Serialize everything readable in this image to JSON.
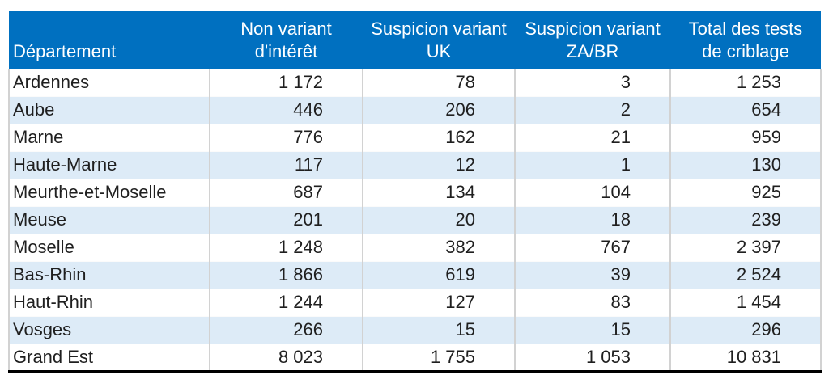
{
  "colors": {
    "header_bg": "#0070C0",
    "header_text": "#FFFFFF",
    "row_alt_bg": "#DDEBF7",
    "row_bg": "#FFFFFF",
    "cell_text": "#1F1F1F",
    "grid_border": "#D2D2D2",
    "table_bottom_border": "#000000"
  },
  "table": {
    "headers": [
      {
        "label": "Département"
      },
      {
        "label": "Non variant\nd'intérêt"
      },
      {
        "label": "Suspicion variant\nUK"
      },
      {
        "label": "Suspicion variant\nZA/BR"
      },
      {
        "label": "Total des tests\nde criblage"
      }
    ],
    "rows": [
      {
        "name": "Ardennes",
        "values": [
          "1 172",
          "78",
          "3",
          "1 253"
        ]
      },
      {
        "name": "Aube",
        "values": [
          "446",
          "206",
          "2",
          "654"
        ]
      },
      {
        "name": "Marne",
        "values": [
          "776",
          "162",
          "21",
          "959"
        ]
      },
      {
        "name": "Haute-Marne",
        "values": [
          "117",
          "12",
          "1",
          "130"
        ]
      },
      {
        "name": "Meurthe-et-Moselle",
        "values": [
          "687",
          "134",
          "104",
          "925"
        ]
      },
      {
        "name": "Meuse",
        "values": [
          "201",
          "20",
          "18",
          "239"
        ]
      },
      {
        "name": "Moselle",
        "values": [
          "1 248",
          "382",
          "767",
          "2 397"
        ]
      },
      {
        "name": "Bas-Rhin",
        "values": [
          "1 866",
          "619",
          "39",
          "2 524"
        ]
      },
      {
        "name": "Haut-Rhin",
        "values": [
          "1 244",
          "127",
          "83",
          "1 454"
        ]
      },
      {
        "name": "Vosges",
        "values": [
          "266",
          "15",
          "15",
          "296"
        ]
      },
      {
        "name": "Grand Est",
        "values": [
          "8 023",
          "1 755",
          "1 053",
          "10 831"
        ]
      }
    ]
  },
  "chart_data": {
    "type": "table",
    "columns": [
      "Département",
      "Non variant d'intérêt",
      "Suspicion variant UK",
      "Suspicion variant ZA/BR",
      "Total des tests de criblage"
    ],
    "rows": [
      [
        "Ardennes",
        1172,
        78,
        3,
        1253
      ],
      [
        "Aube",
        446,
        206,
        2,
        654
      ],
      [
        "Marne",
        776,
        162,
        21,
        959
      ],
      [
        "Haute-Marne",
        117,
        12,
        1,
        130
      ],
      [
        "Meurthe-et-Moselle",
        687,
        134,
        104,
        925
      ],
      [
        "Meuse",
        201,
        20,
        18,
        239
      ],
      [
        "Moselle",
        1248,
        382,
        767,
        2397
      ],
      [
        "Bas-Rhin",
        1866,
        619,
        39,
        2524
      ],
      [
        "Haut-Rhin",
        1244,
        127,
        83,
        1454
      ],
      [
        "Vosges",
        266,
        15,
        15,
        296
      ],
      [
        "Grand Est",
        8023,
        1755,
        1053,
        10831
      ]
    ]
  }
}
